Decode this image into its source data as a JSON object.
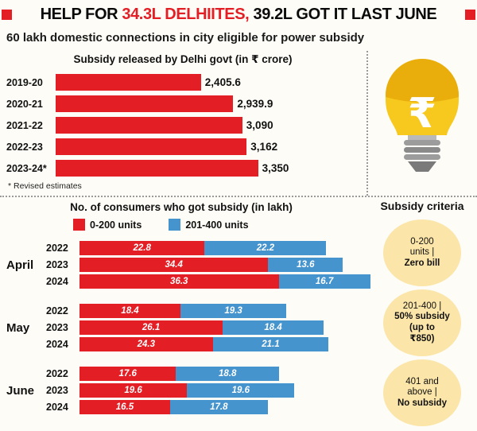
{
  "colors": {
    "red": "#e31e25",
    "blue": "#4694ce",
    "cream": "#fbe5a8",
    "gold_dark": "#e9ad0c",
    "gold_light": "#f7c81d"
  },
  "header": {
    "part1": "HELP FOR ",
    "highlight": "34.3L DELHIITES,",
    "part2": " 39.2L GOT IT LAST JUNE"
  },
  "subhead": "60 lakh domestic connections in city eligible for power subsidy",
  "chart_data": [
    {
      "type": "bar",
      "orientation": "horizontal",
      "title": "Subsidy released by Delhi govt (in ₹ crore)",
      "categories": [
        "2019-20",
        "2020-21",
        "2021-22",
        "2022-23",
        "2023-24*"
      ],
      "values": [
        2405.6,
        2939.9,
        3090,
        3162,
        3350
      ],
      "value_labels": [
        "2,405.6",
        "2,939.9",
        "3,090",
        "3,162",
        "3,350"
      ],
      "footnote": "* Revised estimates",
      "xlim": [
        0,
        3600
      ],
      "bar_color": "#e31e25"
    },
    {
      "type": "bar",
      "orientation": "horizontal",
      "stacked": true,
      "title": "No. of consumers who got subsidy (in lakh)",
      "legend": [
        "0-200 units",
        "201-400 units"
      ],
      "series_colors": [
        "#e31e25",
        "#4694ce"
      ],
      "groups": [
        {
          "month": "April",
          "rows": [
            {
              "year": "2022",
              "red": "22.8",
              "blue": "22.2"
            },
            {
              "year": "2023",
              "red": "34.4",
              "blue": "13.6"
            },
            {
              "year": "2024",
              "red": "36.3",
              "blue": "16.7"
            }
          ]
        },
        {
          "month": "May",
          "rows": [
            {
              "year": "2022",
              "red": "18.4",
              "blue": "19.3"
            },
            {
              "year": "2023",
              "red": "26.1",
              "blue": "18.4"
            },
            {
              "year": "2024",
              "red": "24.3",
              "blue": "21.1"
            }
          ]
        },
        {
          "month": "June",
          "rows": [
            {
              "year": "2022",
              "red": "17.6",
              "blue": "18.8"
            },
            {
              "year": "2023",
              "red": "19.6",
              "blue": "19.6"
            },
            {
              "year": "2024",
              "red": "16.5",
              "blue": "17.8"
            }
          ]
        }
      ]
    }
  ],
  "bulb": {
    "symbol": "₹"
  },
  "criteria": {
    "title": "Subsidy criteria",
    "items": [
      {
        "lines": [
          "0-200",
          "units |",
          "Zero bill"
        ]
      },
      {
        "lines": [
          "201-400 |",
          "50% subsidy",
          "(up to",
          "₹850)"
        ]
      },
      {
        "lines": [
          "401 and",
          "above |",
          "No subsidy"
        ]
      }
    ]
  }
}
